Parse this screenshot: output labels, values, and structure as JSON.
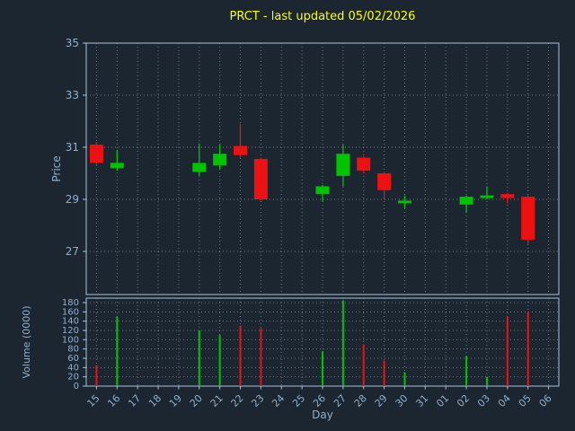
{
  "chart_data": {
    "type": "candlestick",
    "title": "PRCT - last updated 05/02/2026",
    "xlabel": "Day",
    "price_ylabel": "Price",
    "volume_ylabel": "Volume (0000)",
    "x_ticks": [
      "15",
      "16",
      "17",
      "18",
      "19",
      "20",
      "21",
      "22",
      "23",
      "24",
      "25",
      "26",
      "27",
      "28",
      "29",
      "30",
      "31",
      "01",
      "02",
      "03",
      "04",
      "05",
      "06"
    ],
    "price_ticks": [
      35,
      33,
      31,
      29,
      27
    ],
    "price_axis_range": [
      25.3,
      35
    ],
    "volume_ticks": [
      180,
      160,
      140,
      120,
      100,
      80,
      60,
      40,
      20,
      0
    ],
    "volume_axis_range": [
      0,
      190
    ],
    "grid": true,
    "legend": "none",
    "colors": {
      "up": "#00c400",
      "down": "#ee1111",
      "title": "#ffff00",
      "text": "#8fafce",
      "grid": "#cfdce8",
      "frame": "#a9c3dc",
      "background": "#1b2630"
    },
    "candles": [
      {
        "day": "15",
        "open": 31.1,
        "high": 31.2,
        "low": 30.3,
        "close": 30.4,
        "direction": "down",
        "volume": 45
      },
      {
        "day": "16",
        "open": 30.2,
        "high": 30.9,
        "low": 30.1,
        "close": 30.4,
        "direction": "up",
        "volume": 150
      },
      {
        "day": "20",
        "open": 30.05,
        "high": 31.15,
        "low": 29.9,
        "close": 30.4,
        "direction": "up",
        "volume": 120
      },
      {
        "day": "21",
        "open": 30.3,
        "high": 31.1,
        "low": 30.15,
        "close": 30.75,
        "direction": "up",
        "volume": 110
      },
      {
        "day": "22",
        "open": 31.05,
        "high": 31.9,
        "low": 30.6,
        "close": 30.7,
        "direction": "down",
        "volume": 130
      },
      {
        "day": "23",
        "open": 30.55,
        "high": 30.6,
        "low": 28.95,
        "close": 29.0,
        "direction": "down",
        "volume": 125
      },
      {
        "day": "26",
        "open": 29.2,
        "high": 29.55,
        "low": 28.9,
        "close": 29.5,
        "direction": "up",
        "volume": 75
      },
      {
        "day": "27",
        "open": 29.9,
        "high": 31.1,
        "low": 29.5,
        "close": 30.75,
        "direction": "up",
        "volume": 185
      },
      {
        "day": "28",
        "open": 30.6,
        "high": 30.65,
        "low": 30.0,
        "close": 30.1,
        "direction": "down",
        "volume": 90
      },
      {
        "day": "29",
        "open": 30.0,
        "high": 30.05,
        "low": 29.0,
        "close": 29.35,
        "direction": "down",
        "volume": 55
      },
      {
        "day": "30",
        "open": 28.85,
        "high": 29.15,
        "low": 28.65,
        "close": 28.95,
        "direction": "up",
        "volume": 30
      },
      {
        "day": "02",
        "open": 28.8,
        "high": 29.15,
        "low": 28.5,
        "close": 29.1,
        "direction": "up",
        "volume": 65
      },
      {
        "day": "03",
        "open": 29.05,
        "high": 29.5,
        "low": 29.0,
        "close": 29.15,
        "direction": "up",
        "volume": 20
      },
      {
        "day": "04",
        "open": 29.2,
        "high": 29.25,
        "low": 28.85,
        "close": 29.05,
        "direction": "down",
        "volume": 150
      },
      {
        "day": "05",
        "open": 29.1,
        "high": 29.15,
        "low": 27.3,
        "close": 27.45,
        "direction": "down",
        "volume": 160
      }
    ]
  }
}
